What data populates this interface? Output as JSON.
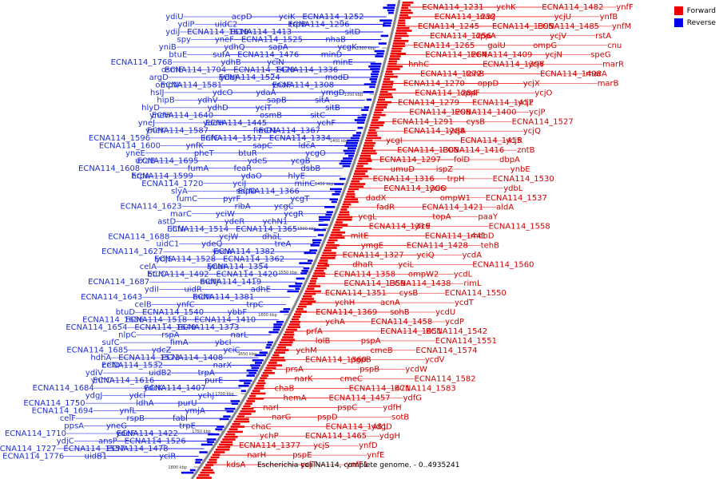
{
  "caption": "Escherichia coli NA114, complete genome. - 0..4935241",
  "legend": [
    {
      "label": "Forward",
      "color": "#ee0000"
    },
    {
      "label": "Reverse",
      "color": "#0000ee"
    }
  ],
  "colors": {
    "forward": "#ee0000",
    "reverse": "#0000ee",
    "backbone": "#888888",
    "forward_label": "#cc0000",
    "reverse_label": "#1f2fd0"
  },
  "ticks": [
    "1300 kbp",
    "1350 kbp",
    "1400 kbp",
    "1450 kbp",
    "1500 kbp",
    "1550 kbp",
    "1600 kbp",
    "1650 kbp",
    "1700 kbp",
    "1750 kbp",
    "1800 kbp"
  ],
  "forward_labels": [
    "ECNA114_1231",
    "ECNA114_1232",
    "ECNA114_1245",
    "ECNA114_1256",
    "ECNA114_1265",
    "ECNA114_1264",
    "hnhC",
    "ECNA114_1272",
    "ECNA114_1270",
    "ECNA114_1284",
    "ECNA114_1279",
    "ECNA114_1298",
    "ECNA114_1291",
    "ECNA114_1288",
    "ycgI",
    "ECNA114_1305",
    "ECNA114_1297",
    "umuD",
    "ECNA114_1316",
    "ECNA114_1306",
    "dadX",
    "fadR",
    "ycgL",
    "ECNA114_1319",
    "mltE",
    "ymgE",
    "ECNA114_1327",
    "dhaR",
    "ECNA114_1358",
    "ECNA114_1359",
    "ECNA114_1351",
    "ychH",
    "ECNA114_1369",
    "ychA",
    "prfA",
    "lolB",
    "ychM",
    "ECNA114_1360",
    "prsA",
    "narK",
    "chaB",
    "hemA",
    "narI",
    "narG",
    "chaC",
    "ychP",
    "ECNA114_1377",
    "narH",
    "kdsA",
    "ychK",
    "narJ",
    "ECNA114_1395",
    "oppA",
    "galU",
    "ECNA114_1409",
    "ECNA114_1396",
    "tonB",
    "oppD",
    "oppF",
    "ECNA114_1412",
    "ECNA114_1400",
    "cysB",
    "ycjA",
    "ECNA114_1415",
    "ECNA114_1416",
    "folD",
    "ispZ",
    "trpH",
    "yciO",
    "ompW1",
    "ECNA114_1421",
    "topA",
    "ylcE",
    "ECNA114_1441",
    "ECNA114_1428",
    "yciQ",
    "yciL",
    "ompW2",
    "ECNA114_1438",
    "cysB",
    "acnA",
    "sohB",
    "ECNA114_1458",
    "ECNA114_1451",
    "pspA",
    "cmeB",
    "pgpB",
    "pspB",
    "cmeC",
    "ECNA114_1471",
    "ECNA114_1457",
    "pspC",
    "pspD",
    "ECNA114_1481",
    "ECNA114_1465",
    "ycjS",
    "pspE",
    "ycjT",
    "ECNA114_1482",
    "ycjU",
    "ECNA114_1485",
    "ycjV",
    "ompG",
    "ycjN",
    "ycjY",
    "ECNA114_1498",
    "ycjX",
    "ycjO",
    "ycjF",
    "ycjP",
    "ECNA114_1527",
    "ycjQ",
    "ycjR",
    "zntB",
    "dbpA",
    "ynbE",
    "ECNA114_1530",
    "ydbL",
    "ECNA114_1537",
    "aldA",
    "paaY",
    "ECNA114_1558",
    "mdoD",
    "tehB",
    "ycdA",
    "ECNA114_1560",
    "ycdL",
    "rimL",
    "ECNA114_1550",
    "ycdT",
    "ycdU",
    "ycdP",
    "ECNA114_1542",
    "ECNA114_1551",
    "ECNA114_1574",
    "ycdV",
    "ycdW",
    "ECNA114_1582",
    "ECNA114_1583",
    "ydfG",
    "ydfH",
    "sotB",
    "ydgD",
    "ydgH",
    "ynfD",
    "ynfE",
    "ynfF1",
    "ynfF",
    "ynfB",
    "ynfM",
    "rstA",
    "cnu",
    "speG",
    "marR",
    "marA",
    "marB"
  ],
  "reverse_labels": [
    "ECNA114_1252",
    "ECNA114_1296",
    "sitD",
    "nhaB",
    "ycgK",
    "minD",
    "minE",
    "ECNA114_1336",
    "modD",
    "ECNA114_1308",
    "ymgD",
    "sitA",
    "sitB",
    "sitC",
    "ychF",
    "ECNA114_1367",
    "ECNA114_1334",
    "ldcA",
    "ycgO",
    "ycgB",
    "dsbB",
    "hlyE",
    "minC",
    "ECNA114_1366",
    "ycgT",
    "ycgC",
    "ycgR",
    "ychN1",
    "ECNA114_1365",
    "dhaL",
    "treA",
    "ECNA114_1382",
    "ECNA114_1362",
    "ECNA114_1354",
    "ECNA114_1420",
    "ECNA114_1419",
    "adhE",
    "ECNA114_1381",
    "trpC",
    "ybbF",
    "ECNA114_1410",
    "ECNA114_1373",
    "narL",
    "ybcI",
    "yciC",
    "ECNA114_1408",
    "narX",
    "trpA",
    "purE",
    "ECNA114_1407",
    "ychJ",
    "purU",
    "ymjA",
    "fabI",
    "trpE",
    "ECNA114_1422",
    "ECNA114_1526",
    "ECNA114_1478",
    "yciR",
    "yciK",
    "trpB",
    "ECNA114_1413",
    "ECNA114_1525",
    "sapA",
    "ECNA114_1476",
    "yciN",
    "ECNA114_1429",
    "ECNA114_1524",
    "ynaF",
    "ydaA",
    "sapB",
    "yciT",
    "osmB",
    "ECNA114_1445",
    "fimD1",
    "ECNA114_1517",
    "sapC",
    "btuR",
    "ydeS",
    "feaR",
    "ydaO",
    "yciJ",
    "sapD",
    "pyrF",
    "ribA",
    "yciW",
    "ydeR",
    "ECNA114_1514",
    "ycjW",
    "ydeQ",
    "yncA",
    "ECNA114_1528",
    "ynaI",
    "ECNA114_1492",
    "mdtJ",
    "uidR",
    "mdtI",
    "ynfC",
    "ECNA114_1540",
    "ECNA114_1518",
    "ECNA114_1649",
    "rspA",
    "fimA",
    "ydcZ",
    "ECNA114_1573",
    "ECNA114_1532",
    "uidB2",
    "ECNA114_1616",
    "ydcK",
    "ydcI",
    "ldhA",
    "ynfL",
    "rspB",
    "yneG",
    "ydeF",
    "ansP",
    "ECNA114_1557",
    "uidB1",
    "acpD",
    "uidC2",
    "ECNA114_1619",
    "yneF",
    "ydhQ",
    "sufA",
    "ydhB",
    "ECNA114_1704",
    "ydeJ",
    "ECNA114_1581",
    "ydcO",
    "ydhV",
    "ydhD",
    "ECNA114_1640",
    "ydeH",
    "ECNA114_1587",
    "infC",
    "ynfK",
    "pheT",
    "ECNA114_1695",
    "fumA",
    "ECNA114_1599",
    "ECNA114_1720",
    "slyA",
    "fumC",
    "ECNA114_1623",
    "marC",
    "astD",
    "ihfA",
    "ECNA114_1688",
    "uidC1",
    "ECNA114_1627",
    "ydjS",
    "celA",
    "btuC",
    "ECNA114_1687",
    "ydiI",
    "ECNA114_1643",
    "celB",
    "btuD",
    "ECNA114_1686",
    "ECNA114_1654",
    "nlpC",
    "sufC",
    "ECNA114_1685",
    "hdhA",
    "celD",
    "ydiV",
    "ynhC",
    "ECNA114_1684",
    "ydgJ",
    "ECNA114_1750",
    "ECNA114_1694",
    "celF",
    "ppsA",
    "ECNA114_1710",
    "ydjC",
    "ECNA114_1727",
    "ECNA114_1776",
    "ydiU",
    "ydiP",
    "ydiJ",
    "spy",
    "yniB",
    "btuE",
    "ECNA114_1768",
    "osmE",
    "argD",
    "ompN",
    "hsIJ",
    "hipB",
    "hlyD",
    "yneH",
    "yneJ",
    "yneK",
    "ECNA114_1596",
    "ECNA114_1600",
    "yneE",
    "uxaB",
    "ECNA114_1608",
    "hrpA"
  ]
}
